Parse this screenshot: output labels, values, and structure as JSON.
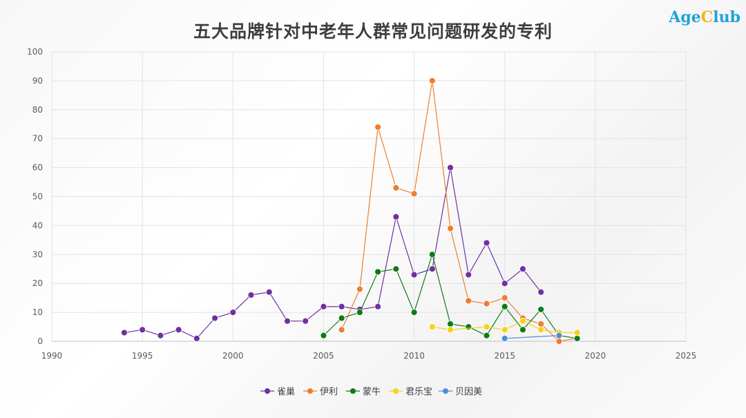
{
  "title": "五大品牌针对中老年人群常见问题研发的专利",
  "logo": {
    "part1": "Age",
    "part2": "C",
    "part3": "lub"
  },
  "chart_data": {
    "type": "line",
    "title": "五大品牌针对中老年人群常见问题研发的专利",
    "xlim": [
      1990,
      2025
    ],
    "ylim": [
      0,
      100
    ],
    "xticks": [
      1990,
      1995,
      2000,
      2005,
      2010,
      2015,
      2020,
      2025
    ],
    "yticks": [
      0,
      10,
      20,
      30,
      40,
      50,
      60,
      70,
      80,
      90,
      100
    ],
    "grid": true,
    "legend": "bottom",
    "series": [
      {
        "name": "雀巢",
        "color": "#7030a0",
        "x": [
          1994,
          1995,
          1996,
          1997,
          1998,
          1999,
          2000,
          2001,
          2002,
          2003,
          2004,
          2005,
          2006,
          2007,
          2008,
          2009,
          2010,
          2011,
          2012,
          2013,
          2014,
          2015,
          2016,
          2017
        ],
        "y": [
          3,
          4,
          2,
          4,
          1,
          8,
          10,
          16,
          17,
          7,
          7,
          12,
          12,
          11,
          12,
          43,
          23,
          25,
          60,
          23,
          34,
          20,
          25,
          17
        ]
      },
      {
        "name": "伊利",
        "color": "#ed7d31",
        "x": [
          2006,
          2007,
          2008,
          2009,
          2010,
          2011,
          2012,
          2013,
          2014,
          2015,
          2016,
          2017,
          2018,
          2019
        ],
        "y": [
          4,
          18,
          74,
          53,
          51,
          90,
          39,
          14,
          13,
          15,
          8,
          6,
          0,
          1
        ]
      },
      {
        "name": "蒙牛",
        "color": "#0e7a16",
        "x": [
          2005,
          2006,
          2007,
          2008,
          2009,
          2010,
          2011,
          2012,
          2013,
          2014,
          2015,
          2016,
          2017,
          2018,
          2019
        ],
        "y": [
          2,
          8,
          10,
          24,
          25,
          10,
          30,
          6,
          5,
          2,
          12,
          4,
          11,
          2,
          1
        ]
      },
      {
        "name": "君乐宝",
        "color": "#f5d318",
        "x": [
          2011,
          2012,
          2014,
          2015,
          2016,
          2017,
          2018,
          2019
        ],
        "y": [
          5,
          4,
          5,
          4,
          7,
          4,
          3,
          3
        ]
      },
      {
        "name": "贝因美",
        "color": "#4a8fd4",
        "x": [
          2015,
          2018
        ],
        "y": [
          1,
          2
        ]
      }
    ]
  }
}
